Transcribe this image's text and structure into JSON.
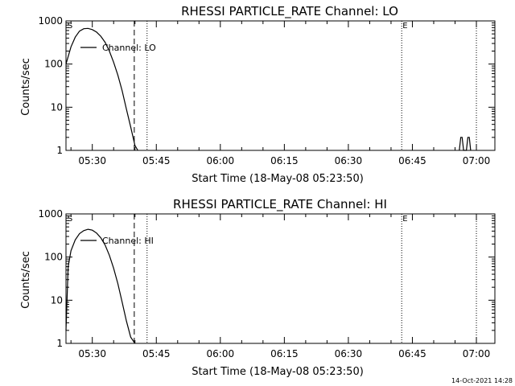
{
  "footer_timestamp": "14-Oct-2021 14:28",
  "chart_data": [
    {
      "type": "line",
      "title": "RHESSI PARTICLE_RATE Channel: LO",
      "xlabel": "Start Time (18-May-08 05:23:50)",
      "ylabel": "Counts/sec",
      "yscale": "log",
      "ylim": [
        1,
        1000
      ],
      "xlim": [
        "05:23:50",
        "07:04:20"
      ],
      "xticks": [
        "05:30",
        "05:45",
        "06:00",
        "06:15",
        "06:30",
        "06:45",
        "07:00"
      ],
      "yticks": [
        "1",
        "10",
        "100",
        "1000"
      ],
      "legend": "Channel: LO",
      "legend_position": "top-left",
      "markers": [
        {
          "label": "S",
          "time": "05:24:00",
          "style": "none"
        },
        {
          "label": "",
          "time": "05:39:50",
          "style": "dashed"
        },
        {
          "label": "",
          "time": "05:42:50",
          "style": "dotted"
        },
        {
          "label": "E",
          "time": "06:42:30",
          "style": "dotted"
        },
        {
          "label": "",
          "time": "07:00:00",
          "style": "dotted"
        }
      ],
      "series": [
        {
          "name": "Channel: LO",
          "x": [
            "05:23:50",
            "05:25:00",
            "05:26:00",
            "05:27:00",
            "05:28:00",
            "05:29:00",
            "05:30:00",
            "05:31:00",
            "05:32:00",
            "05:33:00",
            "05:34:00",
            "05:35:00",
            "05:36:00",
            "05:37:00",
            "05:38:00",
            "05:39:00",
            "05:40:00",
            "05:40:40"
          ],
          "y": [
            100,
            250,
            420,
            580,
            660,
            670,
            630,
            550,
            440,
            320,
            200,
            110,
            55,
            24,
            9,
            3.5,
            1.3,
            1
          ]
        },
        {
          "name": "Channel: LO",
          "x": [
            "06:56:00",
            "06:56:20",
            "06:56:40",
            "06:57:00",
            "06:57:20",
            "06:57:40",
            "06:58:00",
            "06:58:20",
            "06:58:40"
          ],
          "y": [
            1,
            2,
            2,
            1,
            1,
            1,
            2,
            2,
            1
          ]
        }
      ]
    },
    {
      "type": "line",
      "title": "RHESSI PARTICLE_RATE Channel: HI",
      "xlabel": "Start Time (18-May-08 05:23:50)",
      "ylabel": "Counts/sec",
      "yscale": "log",
      "ylim": [
        1,
        1000
      ],
      "xlim": [
        "05:23:50",
        "07:04:20"
      ],
      "xticks": [
        "05:30",
        "05:45",
        "06:00",
        "06:15",
        "06:30",
        "06:45",
        "07:00"
      ],
      "yticks": [
        "1",
        "10",
        "100",
        "1000"
      ],
      "legend": "Channel: HI",
      "legend_position": "top-left",
      "markers": [
        {
          "label": "S",
          "time": "05:24:00",
          "style": "none"
        },
        {
          "label": "",
          "time": "05:39:50",
          "style": "dashed"
        },
        {
          "label": "",
          "time": "05:42:50",
          "style": "dotted"
        },
        {
          "label": "E",
          "time": "06:42:30",
          "style": "dotted"
        },
        {
          "label": "",
          "time": "07:00:00",
          "style": "dotted"
        }
      ],
      "series": [
        {
          "name": "Channel: HI",
          "x": [
            "05:23:50",
            "05:24:20",
            "05:25:00",
            "05:26:00",
            "05:27:00",
            "05:28:00",
            "05:29:00",
            "05:30:00",
            "05:31:00",
            "05:32:00",
            "05:33:00",
            "05:34:00",
            "05:35:00",
            "05:36:00",
            "05:37:00",
            "05:38:00",
            "05:39:00",
            "05:40:00"
          ],
          "y": [
            2,
            60,
            140,
            250,
            350,
            410,
            440,
            420,
            360,
            280,
            190,
            110,
            55,
            24,
            9,
            3.3,
            1.4,
            1
          ]
        }
      ]
    }
  ]
}
